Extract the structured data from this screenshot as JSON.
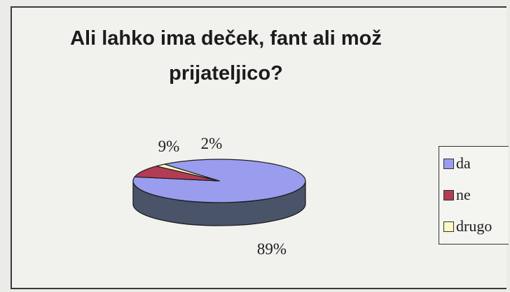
{
  "chart_data": {
    "type": "pie",
    "title": "Ali lahko ima deček, fant ali mož\nprijateljico?",
    "categories": [
      "da",
      "ne",
      "drugo"
    ],
    "values": [
      89,
      9,
      2
    ],
    "value_labels": [
      "89%",
      "9%",
      "2%"
    ],
    "colors": [
      "#9a9cee",
      "#b23c54",
      "#fbf9c4"
    ],
    "side_color": "#4a5469",
    "style": "3d",
    "legend_position": "right"
  }
}
